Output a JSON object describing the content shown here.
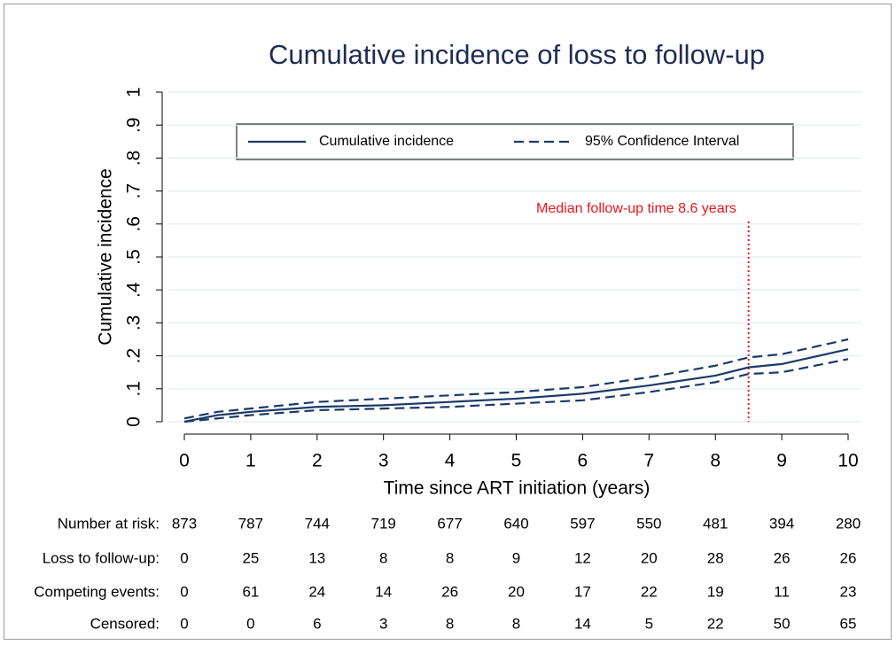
{
  "chart_data": {
    "type": "line",
    "title": "Cumulative incidence of loss to follow-up",
    "x_label": "Time since ART initiation (years)",
    "y_label": "Cumulative incidence",
    "xlim": [
      0,
      10
    ],
    "xticks": [
      0,
      1,
      2,
      3,
      4,
      5,
      6,
      7,
      8,
      9,
      10
    ],
    "ylim": [
      0,
      1
    ],
    "yticks": [
      0,
      {
        "value": 0.1,
        "label": ".1"
      },
      {
        "value": 0.2,
        "label": ".2"
      },
      {
        "value": 0.3,
        "label": ".3"
      },
      {
        "value": 0.4,
        "label": ".4"
      },
      {
        "value": 0.5,
        "label": ".5"
      },
      {
        "value": 0.6,
        "label": ".6"
      },
      {
        "value": 0.7,
        "label": ".7"
      },
      {
        "value": 0.8,
        "label": ".8"
      },
      {
        "value": 0.9,
        "label": ".9"
      },
      1
    ],
    "grid": true,
    "x": [
      0,
      0.5,
      1,
      2,
      3,
      4,
      5,
      6,
      7,
      8,
      8.5,
      9,
      10
    ],
    "series": [
      {
        "name": "Cumulative incidence",
        "color": "#1b3a66",
        "style": "solid",
        "values": [
          0,
          0.02,
          0.03,
          0.045,
          0.05,
          0.06,
          0.07,
          0.085,
          0.11,
          0.14,
          0.165,
          0.175,
          0.22
        ]
      },
      {
        "name": "95% Confidence Interval",
        "color": "#1b3a66",
        "style": "dashed",
        "upper": [
          0.01,
          0.03,
          0.04,
          0.06,
          0.07,
          0.08,
          0.09,
          0.105,
          0.135,
          0.17,
          0.195,
          0.205,
          0.25
        ],
        "lower": [
          0,
          0.01,
          0.02,
          0.035,
          0.04,
          0.045,
          0.055,
          0.065,
          0.09,
          0.12,
          0.145,
          0.15,
          0.19
        ]
      }
    ],
    "annotation": {
      "text": "Median follow-up time 8.6 years",
      "x": 8.5,
      "color": "#e8161b"
    },
    "risk_table": {
      "rows": [
        {
          "label": "Number at risk:",
          "values": [
            873,
            787,
            744,
            719,
            677,
            640,
            597,
            550,
            481,
            394,
            280
          ]
        },
        {
          "label": "Loss to follow-up:",
          "values": [
            0,
            25,
            13,
            8,
            8,
            9,
            12,
            20,
            28,
            26,
            26
          ]
        },
        {
          "label": "Competing events:",
          "values": [
            0,
            61,
            24,
            14,
            26,
            20,
            17,
            22,
            19,
            11,
            23
          ]
        },
        {
          "label": "Censored:",
          "values": [
            0,
            0,
            6,
            3,
            8,
            8,
            14,
            5,
            22,
            50,
            65
          ]
        }
      ]
    }
  }
}
